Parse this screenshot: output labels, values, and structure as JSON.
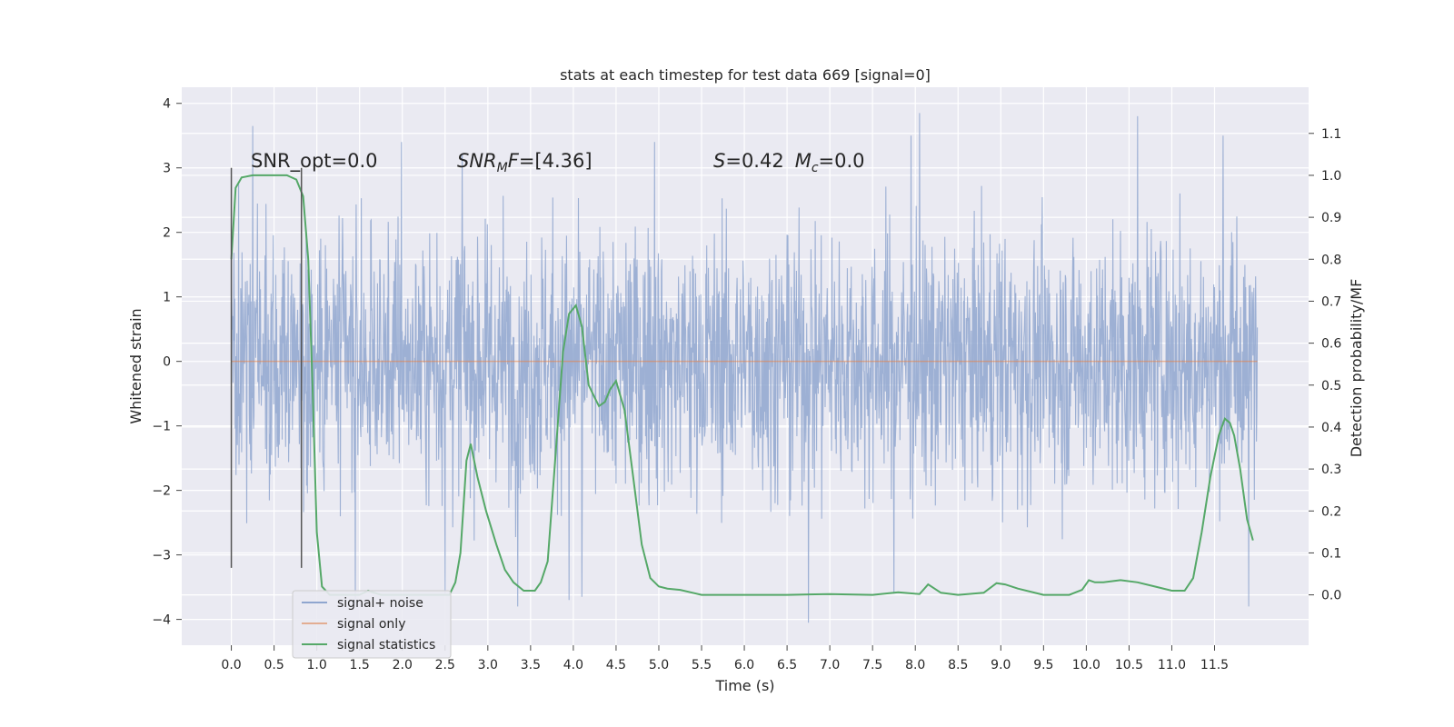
{
  "chart_data": {
    "type": "line",
    "title": "stats at each timestep for test data 669 [signal=0]",
    "xlabel": "Time (s)",
    "ylabel": "Whitened strain",
    "y2label": "Detection probability/MF",
    "xlim": [
      -0.58,
      12.6
    ],
    "ylim": [
      -4.4,
      4.25
    ],
    "y2lim": [
      -0.12,
      1.21
    ],
    "grid": true,
    "legend_position": "lower-left",
    "x_ticks": [
      "0.0",
      "0.5",
      "1.0",
      "1.5",
      "2.0",
      "2.5",
      "3.0",
      "3.5",
      "4.0",
      "4.5",
      "5.0",
      "5.5",
      "6.0",
      "6.5",
      "7.0",
      "7.5",
      "8.0",
      "8.5",
      "9.0",
      "9.5",
      "10.0",
      "10.5",
      "11.0",
      "11.5"
    ],
    "y_ticks": [
      "4",
      "3",
      "2",
      "1",
      "0",
      "−1",
      "−2",
      "−3",
      "−4"
    ],
    "y2_ticks": [
      "1.1",
      "1.0",
      "0.9",
      "0.8",
      "0.7",
      "0.6",
      "0.5",
      "0.4",
      "0.3",
      "0.2",
      "0.1",
      "0.0"
    ],
    "annotations": {
      "snr_opt": "SNR_opt=0.0",
      "snr_mf_prefix": "SNR",
      "snr_mf_sub": "M",
      "snr_mf_suffix": "F=[4.36]",
      "s_prefix": "S",
      "s_value": "=0.42",
      "mc_prefix": "M",
      "mc_sub": "c",
      "mc_value": "=0.0"
    },
    "vertical_markers": [
      0.0,
      0.82
    ],
    "series": [
      {
        "name": "signal+ noise",
        "color": "#8fa6cf",
        "axis": "left",
        "description_kind": "noise",
        "x_range": [
          0.0,
          12.0
        ],
        "envelope_abs": 2.4,
        "spikes": [
          {
            "x": 0.25,
            "y": 3.65
          },
          {
            "x": 1.99,
            "y": 3.4
          },
          {
            "x": 2.7,
            "y": 3.2
          },
          {
            "x": 4.95,
            "y": 3.4
          },
          {
            "x": 8.05,
            "y": 3.85
          },
          {
            "x": 7.95,
            "y": 3.5
          },
          {
            "x": 10.6,
            "y": 3.8
          },
          {
            "x": 11.6,
            "y": 3.5
          },
          {
            "x": 1.45,
            "y": -3.8
          },
          {
            "x": 3.35,
            "y": -3.8
          },
          {
            "x": 3.95,
            "y": -3.7
          },
          {
            "x": 4.1,
            "y": -3.65
          },
          {
            "x": 6.75,
            "y": -4.05
          },
          {
            "x": 7.75,
            "y": -3.6
          },
          {
            "x": 11.9,
            "y": -3.8
          },
          {
            "x": 2.5,
            "y": -3.6
          }
        ]
      },
      {
        "name": "signal only",
        "color": "#dd8452",
        "axis": "left",
        "x": [
          0.0,
          12.0
        ],
        "y": [
          0.0,
          0.0
        ]
      },
      {
        "name": "signal statistics",
        "color": "#55a868",
        "axis": "right",
        "x": [
          0.0,
          0.05,
          0.12,
          0.25,
          0.45,
          0.65,
          0.76,
          0.84,
          0.9,
          0.95,
          1.0,
          1.06,
          1.15,
          1.3,
          1.5,
          1.6,
          1.75,
          2.0,
          2.3,
          2.55,
          2.62,
          2.68,
          2.75,
          2.8,
          2.88,
          2.98,
          3.1,
          3.2,
          3.3,
          3.42,
          3.55,
          3.62,
          3.7,
          3.78,
          3.88,
          3.95,
          4.03,
          4.1,
          4.18,
          4.25,
          4.3,
          4.37,
          4.43,
          4.5,
          4.6,
          4.7,
          4.8,
          4.9,
          5.0,
          5.1,
          5.25,
          5.5,
          6.0,
          6.5,
          7.0,
          7.5,
          7.8,
          8.05,
          8.15,
          8.3,
          8.5,
          8.8,
          8.95,
          9.05,
          9.2,
          9.5,
          9.8,
          9.95,
          10.03,
          10.1,
          10.2,
          10.4,
          10.6,
          10.8,
          11.0,
          11.15,
          11.25,
          11.35,
          11.45,
          11.55,
          11.62,
          11.68,
          11.73,
          11.8,
          11.88,
          11.95
        ],
        "y": [
          0.8,
          0.97,
          0.995,
          1.0,
          1.0,
          1.0,
          0.99,
          0.95,
          0.8,
          0.5,
          0.15,
          0.02,
          0.0,
          0.0,
          0.0,
          0.01,
          0.0,
          0.0,
          0.0,
          0.0,
          0.03,
          0.1,
          0.32,
          0.36,
          0.28,
          0.2,
          0.12,
          0.06,
          0.03,
          0.01,
          0.01,
          0.03,
          0.08,
          0.3,
          0.58,
          0.67,
          0.69,
          0.64,
          0.5,
          0.47,
          0.45,
          0.46,
          0.49,
          0.51,
          0.44,
          0.28,
          0.12,
          0.04,
          0.02,
          0.015,
          0.012,
          0.0,
          0.0,
          0.0,
          0.002,
          0.0,
          0.006,
          0.002,
          0.025,
          0.005,
          0.0,
          0.005,
          0.028,
          0.025,
          0.015,
          0.0,
          0.0,
          0.012,
          0.035,
          0.03,
          0.03,
          0.035,
          0.03,
          0.02,
          0.01,
          0.01,
          0.04,
          0.15,
          0.28,
          0.38,
          0.42,
          0.41,
          0.38,
          0.3,
          0.18,
          0.13
        ]
      }
    ]
  }
}
